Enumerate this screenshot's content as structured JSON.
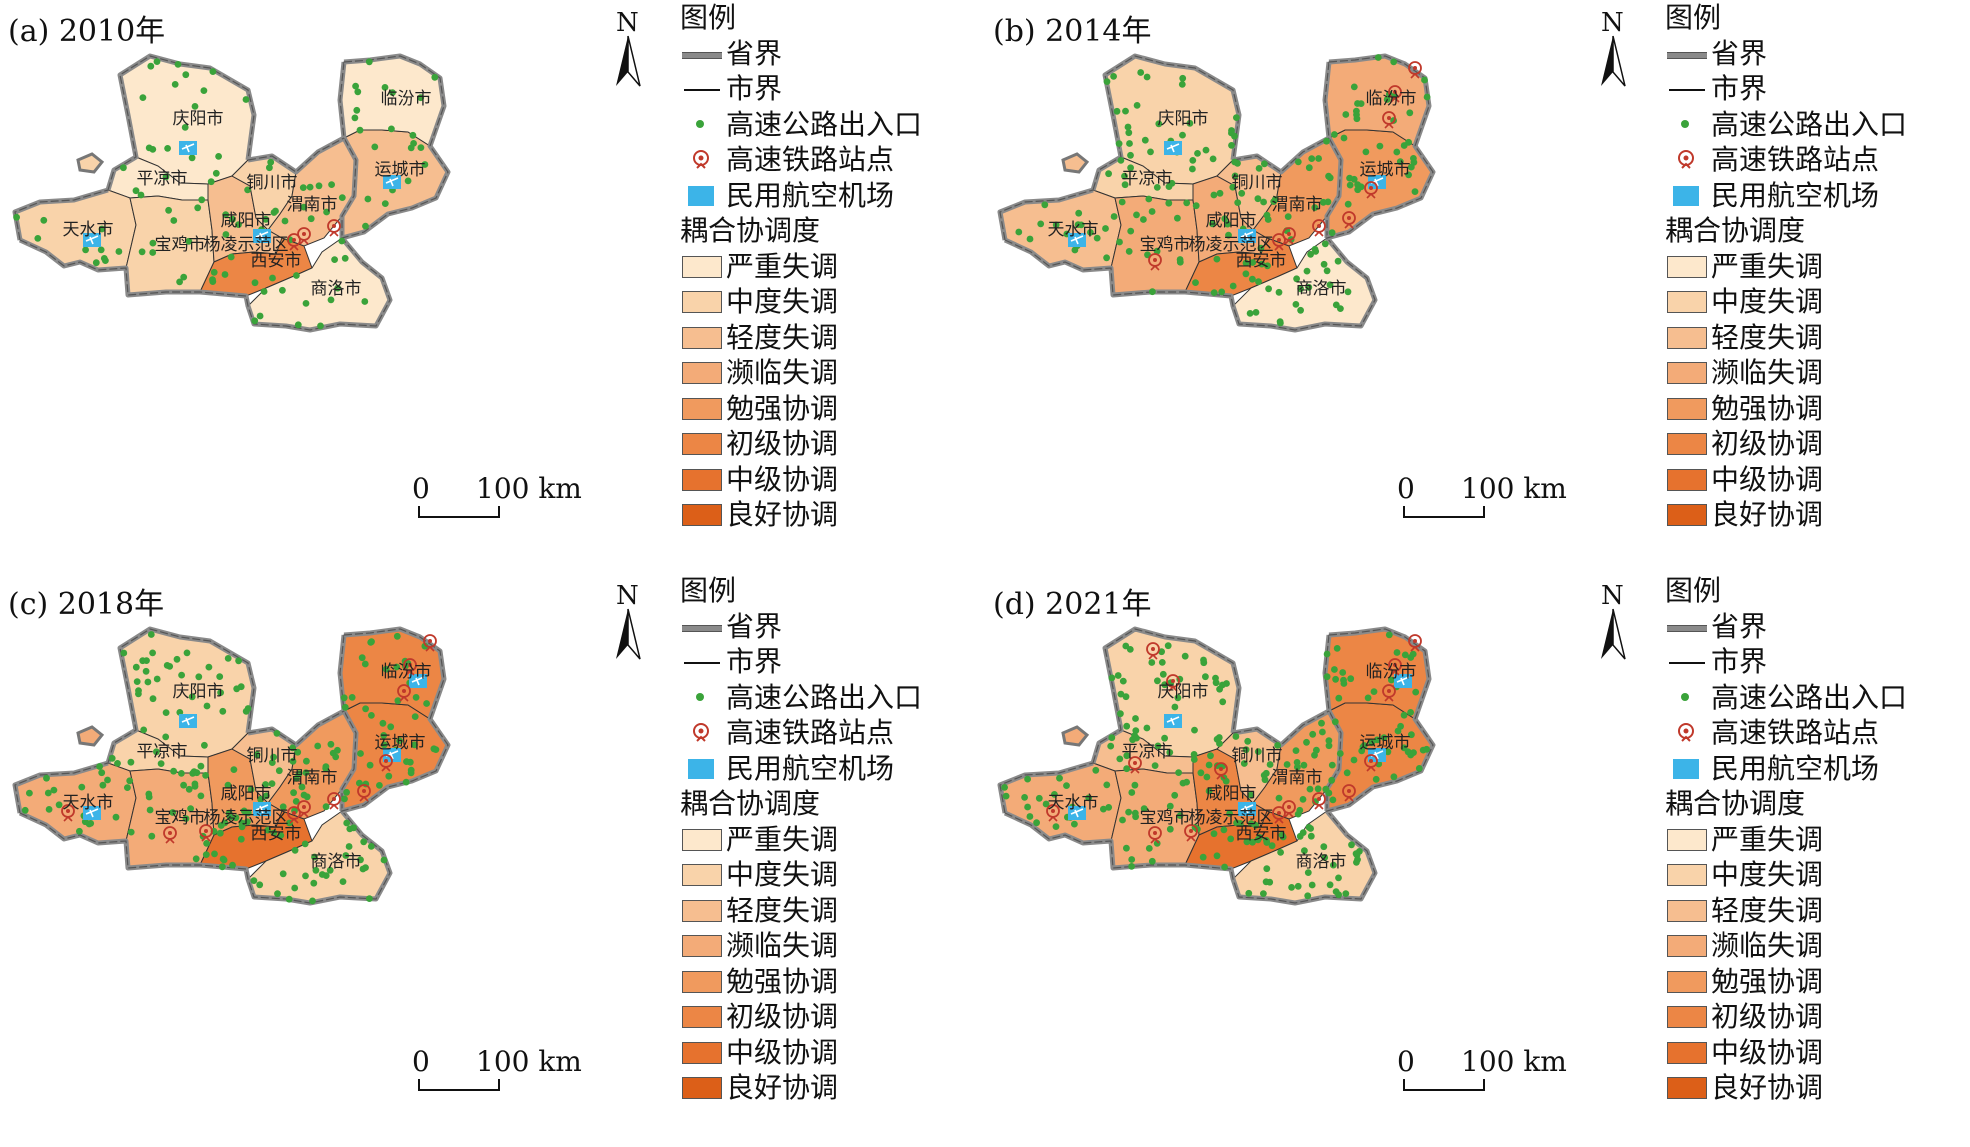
{
  "panels": [
    {
      "title": "(a) 2010年",
      "levels": {
        "庆阳": 1,
        "平凉": 1,
        "天水": 2,
        "宝鸡": 2,
        "咸阳": 3,
        "铜川": 2,
        "渭南": 3,
        "西安": 6,
        "商洛": 1,
        "运城": 3,
        "临汾": 1
      },
      "density": 0.45,
      "rail": [
        "渭南",
        "西安"
      ],
      "airports": [
        "庆阳",
        "天水",
        "咸阳",
        "运城"
      ]
    },
    {
      "title": "(b) 2014年",
      "levels": {
        "庆阳": 2,
        "平凉": 2,
        "天水": 3,
        "宝鸡": 4,
        "咸阳": 4,
        "铜川": 3,
        "渭南": 5,
        "西安": 6,
        "商洛": 1,
        "运城": 5,
        "临汾": 4
      },
      "density": 0.75,
      "rail": [
        "渭南",
        "西安",
        "宝鸡",
        "运城",
        "临汾"
      ],
      "airports": [
        "庆阳",
        "天水",
        "咸阳",
        "运城"
      ]
    },
    {
      "title": "(c) 2018年",
      "levels": {
        "庆阳": 2,
        "平凉": 2,
        "天水": 4,
        "宝鸡": 4,
        "咸阳": 5,
        "铜川": 3,
        "渭南": 5,
        "西安": 7,
        "商洛": 2,
        "运城": 6,
        "临汾": 6
      },
      "density": 0.9,
      "rail": [
        "渭南",
        "西安",
        "宝鸡",
        "运城",
        "临汾",
        "天水",
        "杨凌"
      ],
      "airports": [
        "庆阳",
        "天水",
        "咸阳",
        "运城",
        "临汾"
      ]
    },
    {
      "title": "(d) 2021年",
      "levels": {
        "庆阳": 2,
        "平凉": 3,
        "天水": 4,
        "宝鸡": 4,
        "咸阳": 6,
        "铜川": 3,
        "渭南": 5,
        "西安": 7,
        "商洛": 2,
        "运城": 6,
        "临汾": 6
      },
      "density": 1.0,
      "rail": [
        "渭南",
        "西安",
        "宝鸡",
        "运城",
        "临汾",
        "天水",
        "杨凌",
        "庆阳",
        "平凉",
        "咸阳"
      ],
      "airports": [
        "庆阳",
        "天水",
        "咸阳",
        "运城",
        "临汾"
      ]
    }
  ],
  "city_labels": {
    "庆阳": "庆阳市",
    "平凉": "平凉市",
    "天水": "天水市",
    "宝鸡": "宝鸡市",
    "杨凌": "杨凌示范区",
    "咸阳": "咸阳市",
    "铜川": "铜川市",
    "渭南": "渭南市",
    "西安": "西安市",
    "商洛": "商洛市",
    "运城": "运城市",
    "临汾": "临汾市"
  },
  "north": "N",
  "scale": {
    "zero": "0",
    "dist": "100 km"
  },
  "legend": {
    "title": "图例",
    "province": "省界",
    "city": "市界",
    "highway": "高速公路出入口",
    "rail": "高速铁路站点",
    "airport": "民用航空机场",
    "coupling_title": "耦合协调度",
    "classes": [
      "严重失调",
      "中度失调",
      "轻度失调",
      "濒临失调",
      "勉强协调",
      "初级协调",
      "中级协调",
      "良好协调"
    ],
    "class_colors": [
      "#fde8cc",
      "#f9d3aa",
      "#f6be90",
      "#f3ab78",
      "#f09a5e",
      "#ec8645",
      "#e6722e",
      "#dc5f18"
    ]
  },
  "colors": {
    "highway": "#3aa33a",
    "rail": "#c0392b",
    "airport": "#3cb4e8",
    "province": "#8a8a8a"
  }
}
